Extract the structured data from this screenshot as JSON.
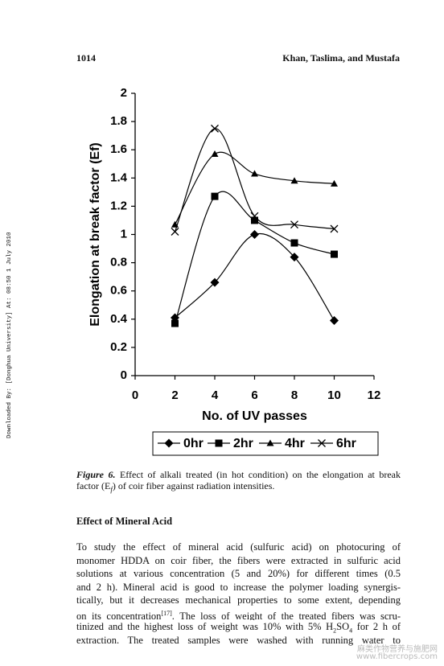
{
  "header": {
    "page_number": "1014",
    "authors": "Khan, Taslima, and Mustafa"
  },
  "side_note": "Downloaded By: [Donghua University] At: 08:50 1 July 2010",
  "chart_data": {
    "type": "line",
    "smooth": true,
    "x_label": "No. of UV passes",
    "y_label": "Elongation at break factor (Ef)",
    "x": [
      2,
      4,
      6,
      8,
      10
    ],
    "xlim": [
      0,
      12
    ],
    "xticks": [
      0,
      2,
      4,
      6,
      8,
      10,
      12
    ],
    "ylim": [
      0,
      2
    ],
    "yticks": [
      0,
      0.2,
      0.4,
      0.6,
      0.8,
      1,
      1.2,
      1.4,
      1.6,
      1.8,
      2
    ],
    "grid": false,
    "legend": "bottom",
    "series": [
      {
        "name": "0hr",
        "color": "#000000",
        "marker": "diamond",
        "values": [
          0.41,
          0.66,
          1.0,
          0.84,
          0.39
        ]
      },
      {
        "name": "2hr",
        "color": "#000000",
        "marker": "square",
        "values": [
          0.37,
          1.27,
          1.1,
          0.94,
          0.86
        ]
      },
      {
        "name": "4hr",
        "color": "#000000",
        "marker": "triangle",
        "values": [
          1.07,
          1.57,
          1.43,
          1.38,
          1.36
        ]
      },
      {
        "name": "6hr",
        "color": "#000000",
        "marker": "x",
        "values": [
          1.02,
          1.75,
          1.13,
          1.07,
          1.04
        ]
      }
    ]
  },
  "caption": {
    "label": "Figure 6.",
    "line1": "Effect of alkali treated (in hot condition) on the elongation at break",
    "line2": [
      "factor (E",
      "f",
      ") of coir fiber against radiation intensities."
    ]
  },
  "section_title": "Effect of Mineral Acid",
  "paragraph": {
    "lines": [
      "To study the effect of mineral acid (sulfuric acid) on photocuring of",
      "monomer HDDA on coir fiber, the fibers were extracted in sulfuric acid",
      "solutions at various concentration (5 and 20%) for different times (0.5",
      "and 2 h). Mineral acid is good to increase the polymer loading synergis-",
      "tically, but it decreases mechanical properties to some extent, depending",
      [
        "on its concentration",
        "[17]",
        ". The loss of weight of the treated fibers was scru-"
      ],
      [
        "tinized and the highest loss of weight was 10% with 5% H",
        "2",
        "SO",
        "4",
        " for 2 h of"
      ],
      "extraction. The treated samples were washed with running water to"
    ]
  },
  "watermark": {
    "line1": "麻类作物营养与施肥网",
    "line2": "www.fibercrops.com"
  }
}
